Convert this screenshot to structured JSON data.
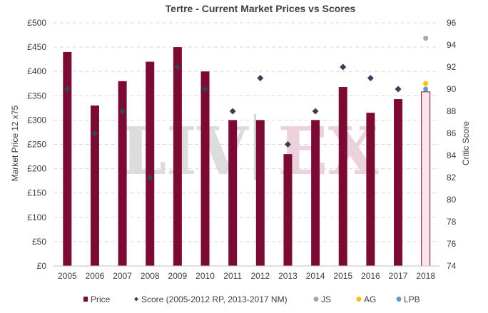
{
  "chart_data": {
    "type": "bar",
    "title": "Tertre - Current Market Prices vs Scores",
    "ylabel": "Market Price 12 x75",
    "y2label": "Critic Score",
    "categories": [
      "2005",
      "2006",
      "2007",
      "2008",
      "2009",
      "2010",
      "2011",
      "2012",
      "2013",
      "2014",
      "2015",
      "2016",
      "2017",
      "2018"
    ],
    "ylim": [
      0,
      500
    ],
    "y2lim": [
      74,
      96
    ],
    "y_ticks": [
      "£0",
      "£50",
      "£100",
      "£150",
      "£200",
      "£250",
      "£300",
      "£350",
      "£400",
      "£450",
      "£500"
    ],
    "y2_ticks": [
      "74",
      "76",
      "78",
      "80",
      "82",
      "84",
      "86",
      "88",
      "90",
      "92",
      "94",
      "96"
    ],
    "grid": true,
    "legend_position": "bottom",
    "watermark": [
      "LIV",
      "EX"
    ],
    "series": [
      {
        "name": "Price",
        "kind": "bar",
        "axis": "left",
        "color": "#7b0a34",
        "values": [
          440,
          330,
          380,
          420,
          450,
          400,
          300,
          300,
          230,
          300,
          368,
          315,
          343,
          358
        ],
        "highlight_last": true,
        "highlight_fill": "#f8e6ee"
      },
      {
        "name": "Score (2005-2012 RP, 2013-2017 NM)",
        "kind": "marker",
        "marker": "diamond",
        "axis": "right",
        "color": "#3b3e57",
        "values": [
          90,
          86,
          88,
          82,
          92,
          90,
          88,
          91,
          85,
          88,
          92,
          91,
          90,
          null
        ]
      },
      {
        "name": "JS",
        "kind": "marker",
        "marker": "circle",
        "axis": "right",
        "color": "#a6a6a6",
        "values": [
          null,
          null,
          null,
          null,
          null,
          null,
          null,
          null,
          null,
          null,
          null,
          null,
          null,
          94.6
        ]
      },
      {
        "name": "AG",
        "kind": "marker",
        "marker": "circle",
        "axis": "right",
        "color": "#ffc000",
        "values": [
          null,
          null,
          null,
          null,
          null,
          null,
          null,
          null,
          null,
          null,
          null,
          null,
          null,
          90.5
        ]
      },
      {
        "name": "LPB",
        "kind": "marker",
        "marker": "circle",
        "axis": "right",
        "color": "#5b9bd5",
        "values": [
          null,
          null,
          null,
          null,
          null,
          null,
          null,
          null,
          null,
          null,
          null,
          null,
          null,
          90
        ]
      }
    ]
  }
}
